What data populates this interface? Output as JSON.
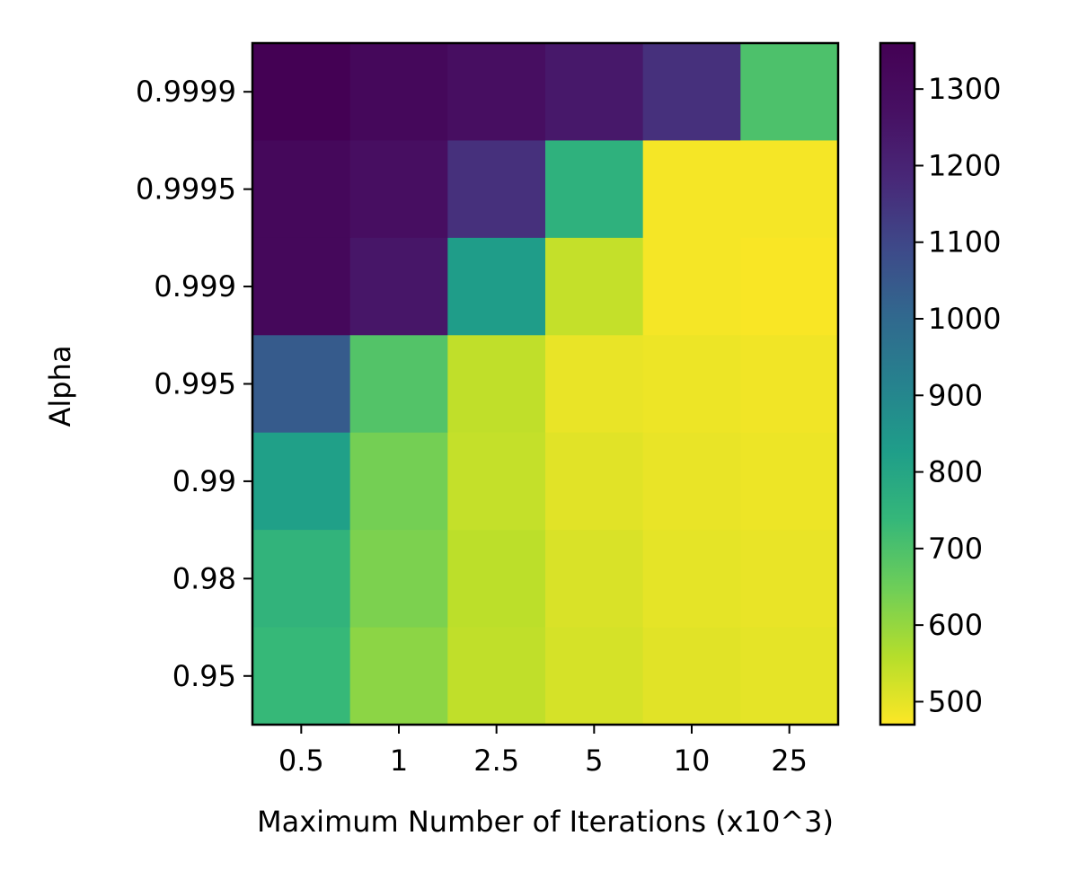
{
  "chart_data": {
    "type": "heatmap",
    "title": "",
    "xlabel": "Maximum Number of Iterations (x10^3)",
    "ylabel": "Alpha",
    "x_categories": [
      "0.5",
      "1",
      "2.5",
      "5",
      "10",
      "25"
    ],
    "y_categories": [
      "0.9999",
      "0.9995",
      "0.999",
      "0.995",
      "0.99",
      "0.98",
      "0.95"
    ],
    "values": [
      [
        1360,
        1320,
        1280,
        1240,
        1160,
        700
      ],
      [
        1320,
        1280,
        1160,
        760,
        480,
        480
      ],
      [
        1320,
        1250,
        830,
        540,
        480,
        475
      ],
      [
        1040,
        690,
        545,
        495,
        490,
        485
      ],
      [
        820,
        640,
        540,
        505,
        495,
        490
      ],
      [
        750,
        630,
        550,
        515,
        500,
        495
      ],
      [
        735,
        610,
        545,
        520,
        505,
        500
      ]
    ],
    "colormap": "viridis_r",
    "colorbar": {
      "range": [
        470,
        1360
      ],
      "ticks": [
        500,
        600,
        700,
        800,
        900,
        1000,
        1100,
        1200,
        1300
      ],
      "tick_labels": [
        "500",
        "600",
        "700",
        "800",
        "900",
        "1000",
        "1100",
        "1200",
        "1300"
      ]
    }
  }
}
